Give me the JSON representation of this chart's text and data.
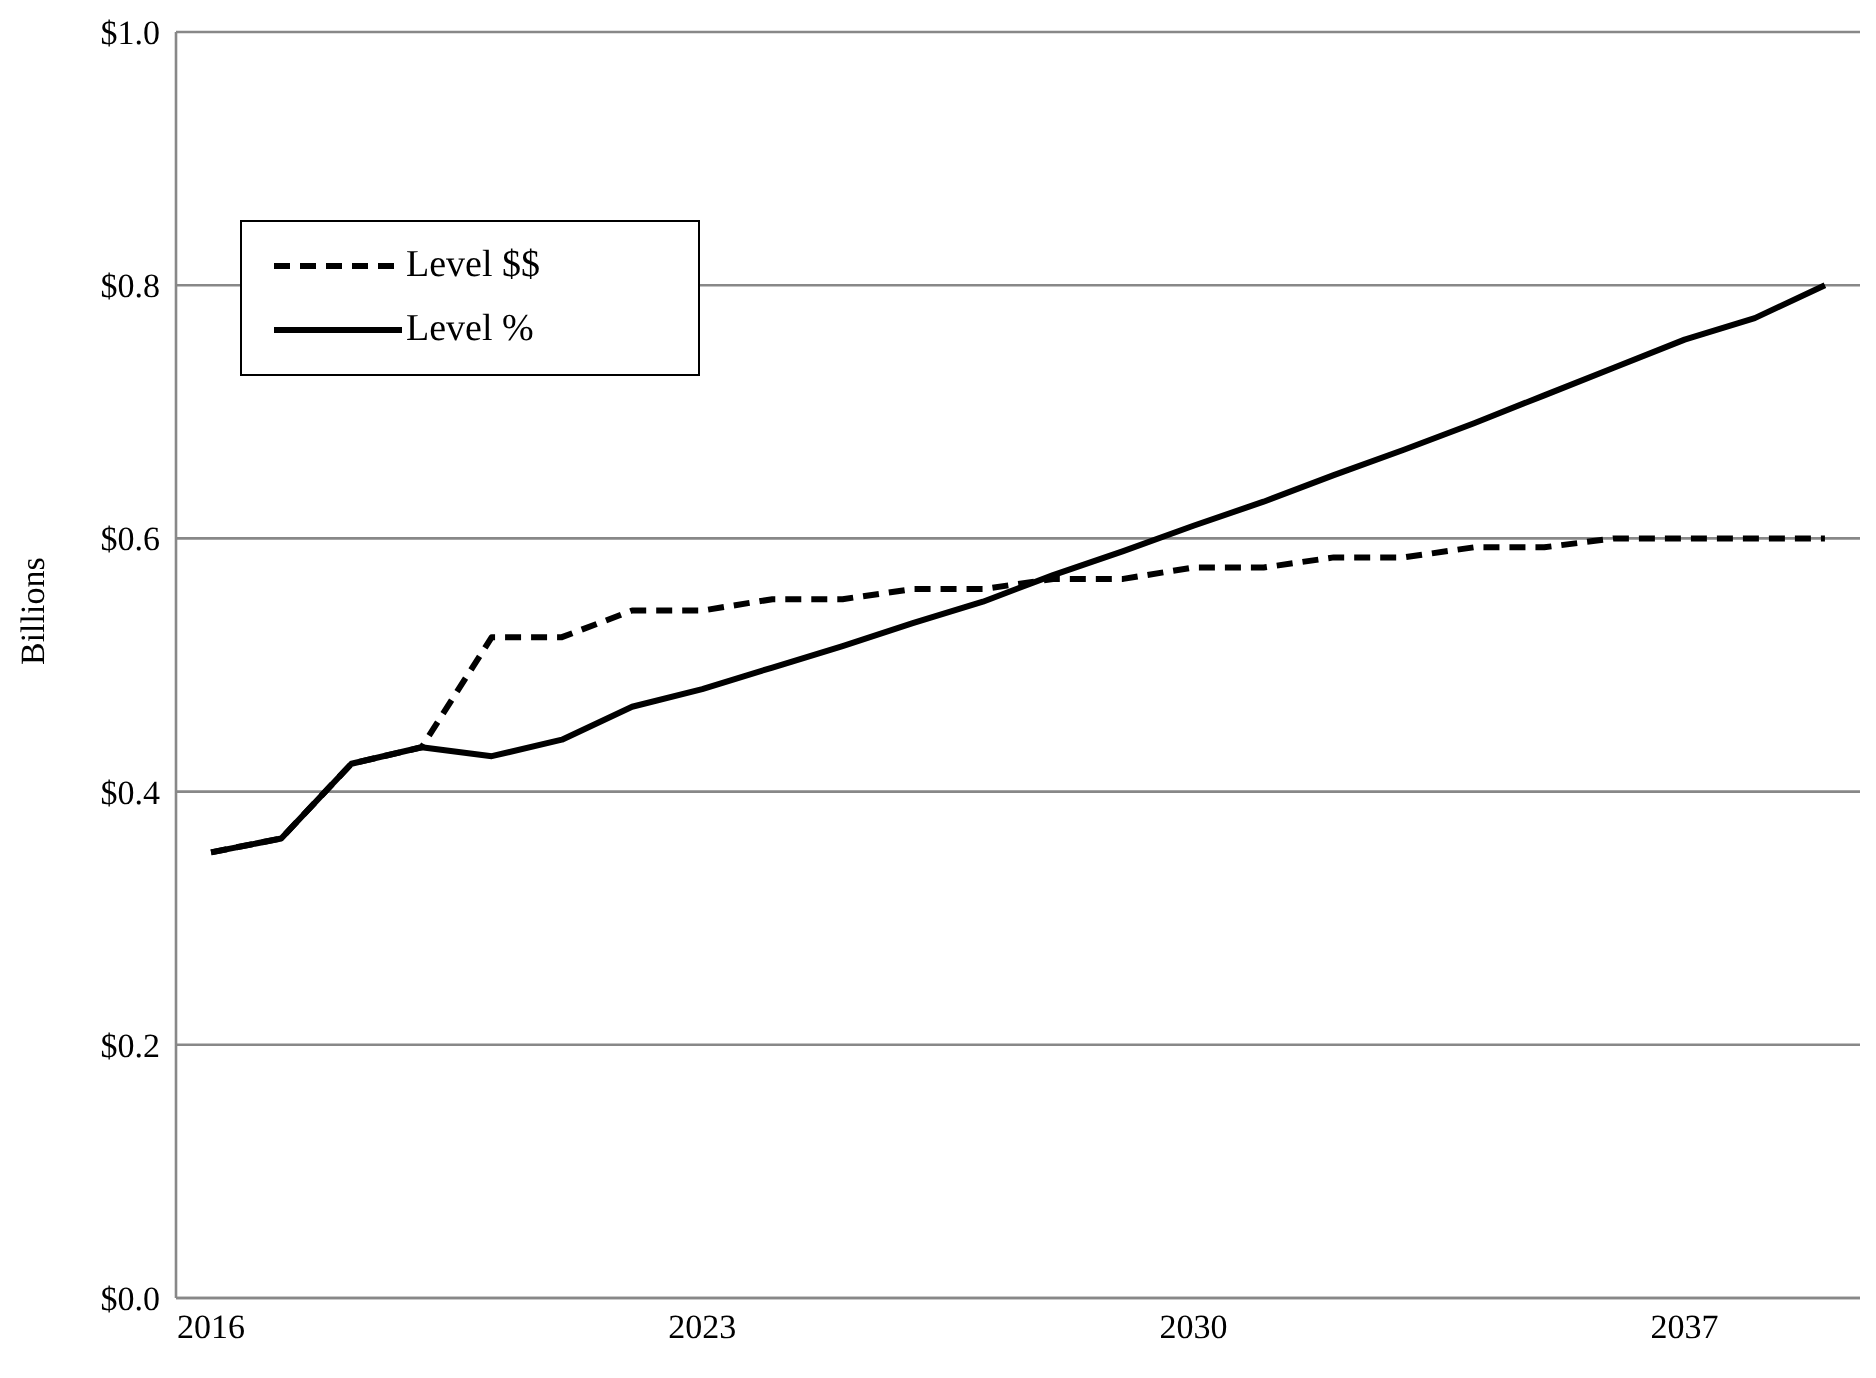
{
  "chart_data": {
    "type": "line",
    "ylabel": "Billions",
    "categories": [
      "2016",
      null,
      null,
      null,
      null,
      null,
      null,
      "2023",
      null,
      null,
      null,
      null,
      null,
      null,
      "2030",
      null,
      null,
      null,
      null,
      null,
      null,
      "2037",
      null,
      null
    ],
    "series": [
      {
        "name": "Level $$",
        "color": "#000000",
        "line_style": "dashed",
        "values": [
          0.352,
          0.363,
          0.422,
          0.435,
          0.522,
          0.522,
          0.543,
          0.543,
          0.552,
          0.552,
          0.56,
          0.56,
          0.568,
          0.568,
          0.577,
          0.577,
          0.585,
          0.585,
          0.593,
          0.593,
          0.6,
          0.6,
          0.6,
          0.6
        ]
      },
      {
        "name": "Level %",
        "color": "#000000",
        "line_style": "solid",
        "values": [
          0.352,
          0.363,
          0.422,
          0.435,
          0.428,
          0.441,
          0.467,
          0.481,
          0.498,
          0.515,
          0.533,
          0.55,
          0.571,
          0.59,
          0.61,
          0.629,
          0.65,
          0.67,
          0.691,
          0.713,
          0.735,
          0.757,
          0.774,
          0.8
        ]
      }
    ],
    "ylim": [
      0,
      1
    ],
    "yticks": [
      {
        "value": 0,
        "label": "$0.0"
      },
      {
        "value": 0.2,
        "label": "$0.2"
      },
      {
        "value": 0.4,
        "label": "$0.4"
      },
      {
        "value": 0.6,
        "label": "$0.6"
      },
      {
        "value": 0.8,
        "label": "$0.8"
      },
      {
        "value": 1,
        "label": "$1.0"
      }
    ],
    "grid": "y",
    "legend": "top left",
    "marker": "none"
  }
}
